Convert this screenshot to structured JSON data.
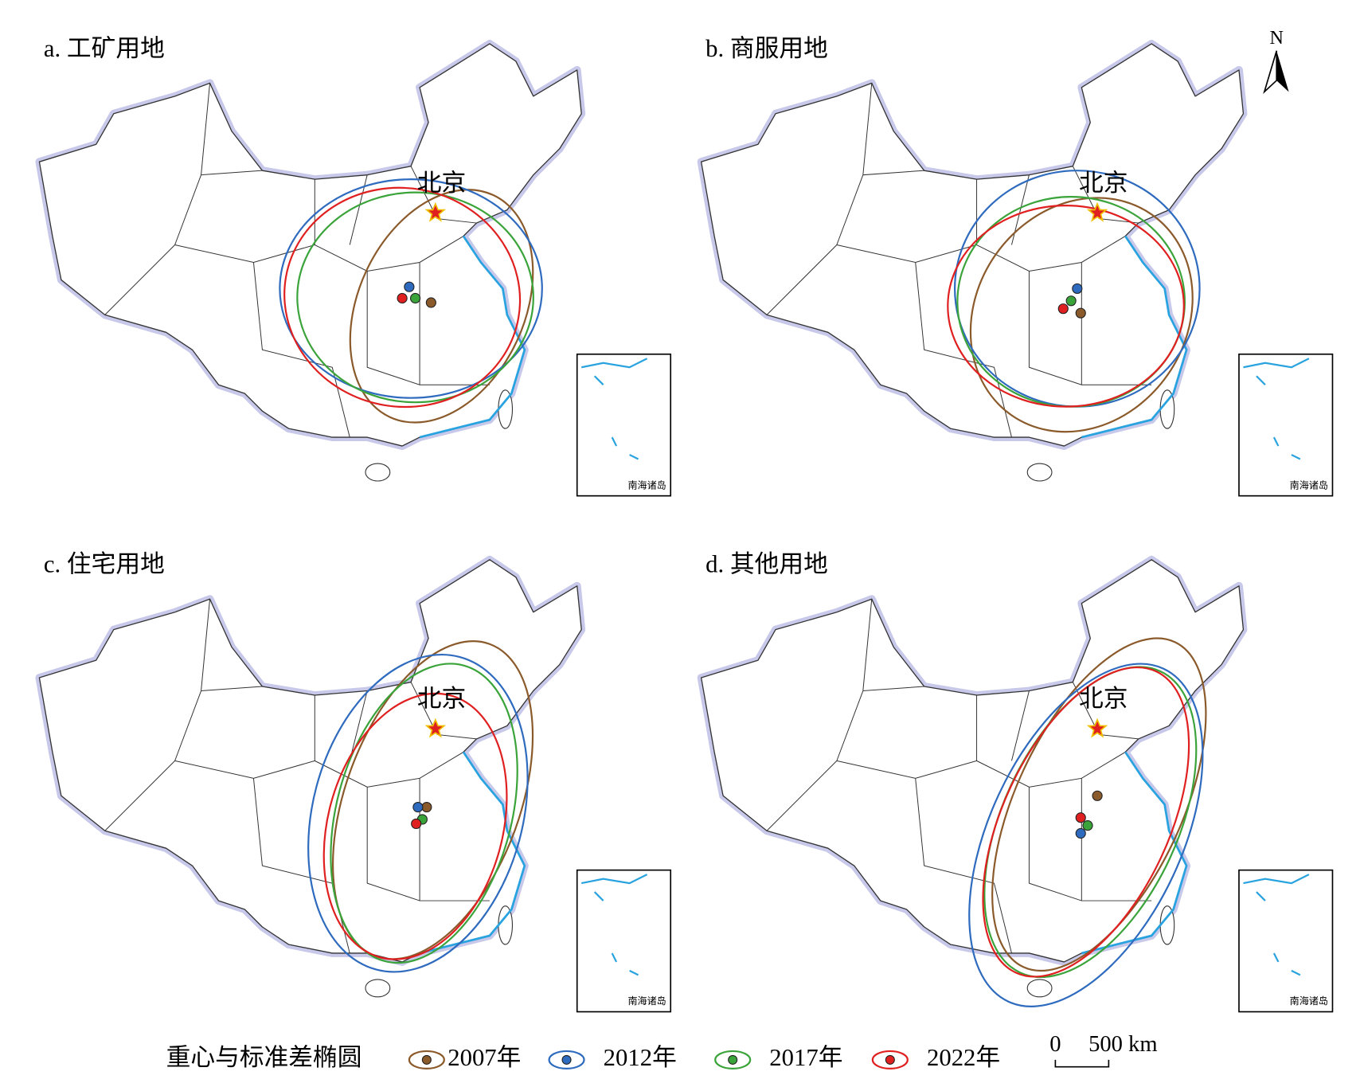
{
  "compass": "N",
  "panels": [
    {
      "title": "a. 工矿用地",
      "capital": "北京",
      "inset_label": "南海诸岛"
    },
    {
      "title": "b. 商服用地",
      "capital": "北京",
      "inset_label": "南海诸岛"
    },
    {
      "title": "c. 住宅用地",
      "capital": "北京",
      "inset_label": "南海诸岛"
    },
    {
      "title": "d. 其他用地",
      "capital": "北京",
      "inset_label": "南海诸岛"
    }
  ],
  "legend": {
    "title": "重心与标准差椭圆",
    "items": [
      {
        "label": "2007年",
        "color": "#8b5a2b"
      },
      {
        "label": "2012年",
        "color": "#2e6bbf"
      },
      {
        "label": "2017年",
        "color": "#3aa33a"
      },
      {
        "label": "2022年",
        "color": "#e02020"
      }
    ]
  },
  "scale_bar": {
    "labels": [
      "0",
      "500 km"
    ]
  }
}
